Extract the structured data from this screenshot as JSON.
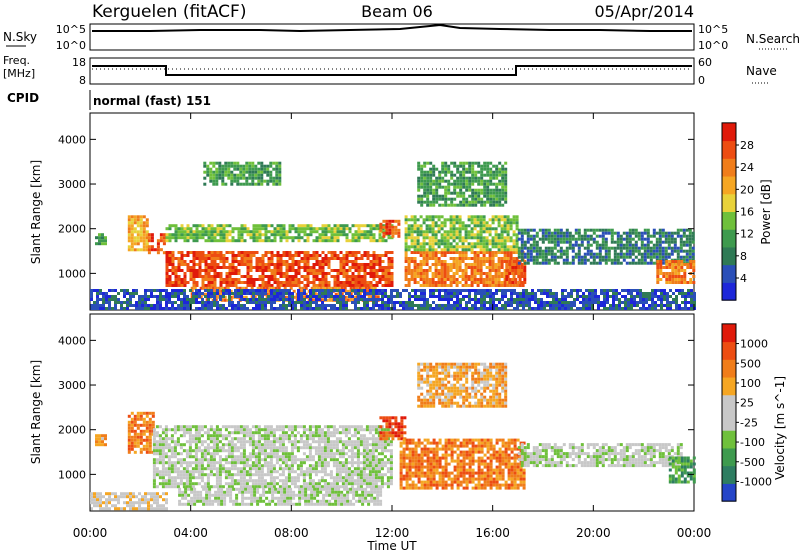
{
  "header": {
    "station": "Kerguelen (fitACF)",
    "beam": "Beam 06",
    "date": "05/Apr/2014"
  },
  "status_panels": {
    "nsky": {
      "label": "N.Sky",
      "tick_top": "10^5",
      "tick_bottom": "10^0"
    },
    "nsearch": {
      "label": "N.Search",
      "tick_top": "10^5",
      "tick_bottom": "10^0"
    },
    "freq": {
      "label_line1": "Freq.",
      "label_line2": "[MHz]",
      "tick_top": "18",
      "tick_bottom": "8"
    },
    "nave": {
      "label": "Nave",
      "tick_top": "60",
      "tick_bottom": "0"
    },
    "cpid": {
      "label": "CPID",
      "value": "normal (fast) 151"
    }
  },
  "x_axis": {
    "label": "Time UT",
    "ticks": [
      "00:00",
      "04:00",
      "08:00",
      "12:00",
      "16:00",
      "20:00",
      "00:00"
    ]
  },
  "chart_data": [
    {
      "type": "heatmap",
      "panel": "power",
      "ylabel": "Slant Range [km]",
      "yticks": [
        "1000",
        "2000",
        "3000",
        "4000"
      ],
      "ylim": [
        180,
        4590
      ],
      "xlim_hours": [
        0,
        24
      ],
      "colorbar": {
        "label": "Power [dB]",
        "ticks": [
          "4",
          "8",
          "12",
          "16",
          "20",
          "24",
          "28"
        ],
        "colors": [
          "#1d27d9",
          "#2a4fb8",
          "#2f7a55",
          "#3e9a4e",
          "#6fc03b",
          "#e8d23a",
          "#f5a623",
          "#f07d1a",
          "#ed4d12",
          "#e01a0a"
        ]
      },
      "regions": [
        {
          "t0": 0.2,
          "t1": 0.6,
          "r0": 1650,
          "r1": 1900,
          "level": 3
        },
        {
          "t0": 1.5,
          "t1": 2.3,
          "r0": 1500,
          "r1": 2300,
          "level": 6
        },
        {
          "t0": 2.3,
          "t1": 3.0,
          "r0": 1450,
          "r1": 1900,
          "level": 8
        },
        {
          "t0": 3.0,
          "t1": 12.0,
          "r0": 700,
          "r1": 1500,
          "level": 8
        },
        {
          "t0": 4.0,
          "t1": 11.5,
          "r0": 400,
          "r1": 700,
          "level": 7
        },
        {
          "t0": 3.0,
          "t1": 12.0,
          "r0": 1700,
          "r1": 2100,
          "level": 4
        },
        {
          "t0": 4.5,
          "t1": 7.5,
          "r0": 3000,
          "r1": 3500,
          "level": 3
        },
        {
          "t0": 11.5,
          "t1": 12.3,
          "r0": 1800,
          "r1": 2200,
          "level": 8
        },
        {
          "t0": 12.5,
          "t1": 17.2,
          "r0": 700,
          "r1": 1500,
          "level": 7
        },
        {
          "t0": 12.5,
          "t1": 17.0,
          "r0": 1500,
          "r1": 2300,
          "level": 4
        },
        {
          "t0": 13.0,
          "t1": 16.5,
          "r0": 2500,
          "r1": 3500,
          "level": 3
        },
        {
          "t0": 16.5,
          "t1": 17.3,
          "r0": 800,
          "r1": 1300,
          "level": 8
        },
        {
          "t0": 17.0,
          "t1": 24.0,
          "r0": 1200,
          "r1": 2000,
          "level": 2
        },
        {
          "t0": 22.5,
          "t1": 24.0,
          "r0": 800,
          "r1": 1300,
          "level": 7
        },
        {
          "t0": 0.0,
          "t1": 24.0,
          "r0": 200,
          "r1": 650,
          "level": 1
        }
      ]
    },
    {
      "type": "heatmap",
      "panel": "velocity",
      "ylabel": "Slant Range [km]",
      "yticks": [
        "1000",
        "2000",
        "3000",
        "4000"
      ],
      "ylim": [
        180,
        4590
      ],
      "xlim_hours": [
        0,
        24
      ],
      "colorbar": {
        "label": "Velocity [m s^-1]",
        "ticks": [
          "1000",
          "500",
          "100",
          "25",
          "-25",
          "-100",
          "-500",
          "-1000"
        ],
        "colors": [
          "#2545c8",
          "#2e7d61",
          "#3e9a4e",
          "#6fc03b",
          "#c8c8c8",
          "#c8c8c8",
          "#f5a623",
          "#f07d1a",
          "#ed4d12",
          "#e01a0a"
        ]
      },
      "regions": [
        {
          "t0": 0.2,
          "t1": 0.6,
          "r0": 1650,
          "r1": 1900,
          "level": 6
        },
        {
          "t0": 1.5,
          "t1": 2.5,
          "r0": 1500,
          "r1": 2400,
          "level": 7
        },
        {
          "t0": 2.5,
          "t1": 12.0,
          "r0": 700,
          "r1": 2100,
          "level": 4
        },
        {
          "t0": 3.5,
          "t1": 11.5,
          "r0": 350,
          "r1": 700,
          "level": 4
        },
        {
          "t0": 11.5,
          "t1": 12.5,
          "r0": 1800,
          "r1": 2300,
          "level": 8
        },
        {
          "t0": 12.3,
          "t1": 17.3,
          "r0": 700,
          "r1": 1800,
          "level": 7
        },
        {
          "t0": 13.0,
          "t1": 16.5,
          "r0": 2500,
          "r1": 3500,
          "level": 6
        },
        {
          "t0": 17.0,
          "t1": 23.5,
          "r0": 1200,
          "r1": 1700,
          "level": 4
        },
        {
          "t0": 23.0,
          "t1": 24.0,
          "r0": 800,
          "r1": 1400,
          "level": 2
        },
        {
          "t0": 0.0,
          "t1": 3.0,
          "r0": 200,
          "r1": 600,
          "level": 5
        }
      ]
    }
  ]
}
